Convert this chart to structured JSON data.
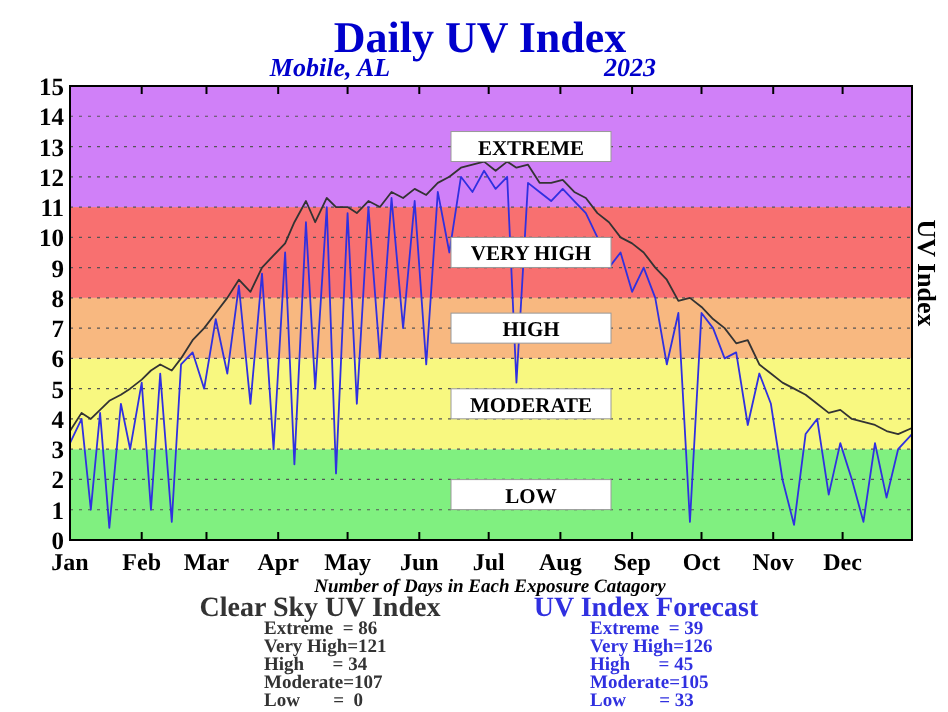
{
  "chart_data": {
    "type": "line",
    "title": "Daily UV Index",
    "subtitle": "Mobile, AL",
    "ylabel": "UV Index",
    "annotations": [
      "2023",
      "Number of Days in Each Exposure Catagory",
      "Extreme  = 86",
      "Very High=121",
      "High      = 34",
      "Moderate=107",
      "Low       =  0",
      "Extreme  = 39",
      "Very High=126",
      "High      = 45",
      "Moderate=105",
      "Low       = 33"
    ],
    "x": [
      "2023-01-01",
      "2023-01-06",
      "2023-01-10",
      "2023-01-14",
      "2023-01-18",
      "2023-01-23",
      "2023-01-27",
      "2023-02-01",
      "2023-02-05",
      "2023-02-09",
      "2023-02-14",
      "2023-02-18",
      "2023-02-23",
      "2023-02-28",
      "2023-03-05",
      "2023-03-10",
      "2023-03-15",
      "2023-03-20",
      "2023-03-25",
      "2023-03-30",
      "2023-04-04",
      "2023-04-08",
      "2023-04-13",
      "2023-04-17",
      "2023-04-22",
      "2023-04-26",
      "2023-05-01",
      "2023-05-05",
      "2023-05-10",
      "2023-05-15",
      "2023-05-20",
      "2023-05-25",
      "2023-05-30",
      "2023-06-04",
      "2023-06-09",
      "2023-06-14",
      "2023-06-19",
      "2023-06-24",
      "2023-06-29",
      "2023-07-04",
      "2023-07-09",
      "2023-07-13",
      "2023-07-18",
      "2023-07-23",
      "2023-07-28",
      "2023-08-02",
      "2023-08-07",
      "2023-08-12",
      "2023-08-17",
      "2023-08-22",
      "2023-08-27",
      "2023-09-01",
      "2023-09-06",
      "2023-09-11",
      "2023-09-16",
      "2023-09-21",
      "2023-09-26",
      "2023-10-01",
      "2023-10-06",
      "2023-10-11",
      "2023-10-16",
      "2023-10-21",
      "2023-10-26",
      "2023-10-31",
      "2023-11-05",
      "2023-11-10",
      "2023-11-15",
      "2023-11-20",
      "2023-11-25",
      "2023-11-30",
      "2023-12-05",
      "2023-12-10",
      "2023-12-15",
      "2023-12-20",
      "2023-12-25",
      "2023-12-31"
    ],
    "series": [
      {
        "name": "Clear Sky UV Index",
        "color": "#333333",
        "values": [
          3.6,
          4.2,
          4.0,
          4.3,
          4.6,
          4.8,
          5.0,
          5.3,
          5.6,
          5.8,
          5.6,
          6.0,
          6.6,
          7.0,
          7.5,
          8.0,
          8.6,
          8.2,
          9.0,
          9.4,
          9.8,
          10.5,
          11.2,
          10.5,
          11.3,
          11.0,
          11.0,
          10.8,
          11.2,
          11.0,
          11.5,
          11.3,
          11.6,
          11.4,
          11.8,
          12.0,
          12.3,
          12.4,
          12.5,
          12.2,
          12.5,
          12.3,
          12.4,
          11.8,
          11.8,
          11.9,
          11.5,
          11.3,
          10.8,
          10.5,
          10.0,
          9.8,
          9.5,
          9.0,
          8.6,
          7.9,
          8.0,
          7.7,
          7.3,
          7.0,
          6.5,
          6.6,
          5.8,
          5.5,
          5.2,
          5.0,
          4.8,
          4.5,
          4.2,
          4.3,
          4.0,
          3.9,
          3.8,
          3.6,
          3.5,
          3.7
        ]
      },
      {
        "name": "UV Index Forecast",
        "color": "#3030e0",
        "values": [
          3.2,
          4.0,
          1.0,
          4.2,
          0.4,
          4.5,
          3.0,
          5.2,
          1.0,
          5.5,
          0.6,
          5.8,
          6.2,
          5.0,
          7.3,
          5.5,
          8.4,
          4.5,
          8.8,
          3.0,
          9.5,
          2.5,
          10.5,
          5.0,
          11.0,
          2.2,
          10.8,
          4.5,
          11.0,
          6.0,
          11.3,
          7.0,
          11.2,
          5.8,
          11.5,
          9.5,
          12.0,
          11.5,
          12.2,
          11.6,
          12.0,
          5.2,
          11.8,
          11.5,
          11.2,
          11.6,
          11.2,
          10.8,
          10.0,
          9.0,
          9.5,
          8.2,
          9.0,
          8.0,
          5.8,
          7.5,
          0.6,
          7.5,
          7.0,
          6.0,
          6.2,
          3.8,
          5.5,
          4.5,
          2.0,
          0.5,
          3.5,
          4.0,
          1.5,
          3.2,
          2.0,
          0.6,
          3.2,
          1.4,
          3.0,
          3.5
        ]
      }
    ],
    "xlim": [
      "2023-01-01",
      "2023-12-31"
    ],
    "xticks": [
      {
        "value": "2023-01-01",
        "label": "Jan"
      },
      {
        "value": "2023-02-01",
        "label": "Feb"
      },
      {
        "value": "2023-03-01",
        "label": "Mar"
      },
      {
        "value": "2023-04-01",
        "label": "Apr"
      },
      {
        "value": "2023-05-01",
        "label": "May"
      },
      {
        "value": "2023-06-01",
        "label": "Jun"
      },
      {
        "value": "2023-07-01",
        "label": "Jul"
      },
      {
        "value": "2023-08-01",
        "label": "Aug"
      },
      {
        "value": "2023-09-01",
        "label": "Sep"
      },
      {
        "value": "2023-10-01",
        "label": "Oct"
      },
      {
        "value": "2023-11-01",
        "label": "Nov"
      },
      {
        "value": "2023-12-01",
        "label": "Dec"
      }
    ],
    "ylim": [
      0,
      15
    ],
    "yticks": [
      0,
      1,
      2,
      3,
      4,
      5,
      6,
      7,
      8,
      9,
      10,
      11,
      12,
      13,
      14,
      15
    ],
    "bands": [
      {
        "axis": "y",
        "from": 0,
        "to": 3,
        "label": "LOW",
        "color": "#80f080"
      },
      {
        "axis": "y",
        "from": 3,
        "to": 6,
        "label": "MODERATE",
        "color": "#f8f880"
      },
      {
        "axis": "y",
        "from": 6,
        "to": 8,
        "label": "HIGH",
        "color": "#f8b880"
      },
      {
        "axis": "y",
        "from": 8,
        "to": 11,
        "label": "VERY HIGH",
        "color": "#f87070"
      },
      {
        "axis": "y",
        "from": 11,
        "to": 15,
        "label": "EXTREME",
        "color": "#d080f8"
      }
    ],
    "grid": "y",
    "legend": "bottom",
    "line_style": "solid",
    "marker": "none"
  }
}
